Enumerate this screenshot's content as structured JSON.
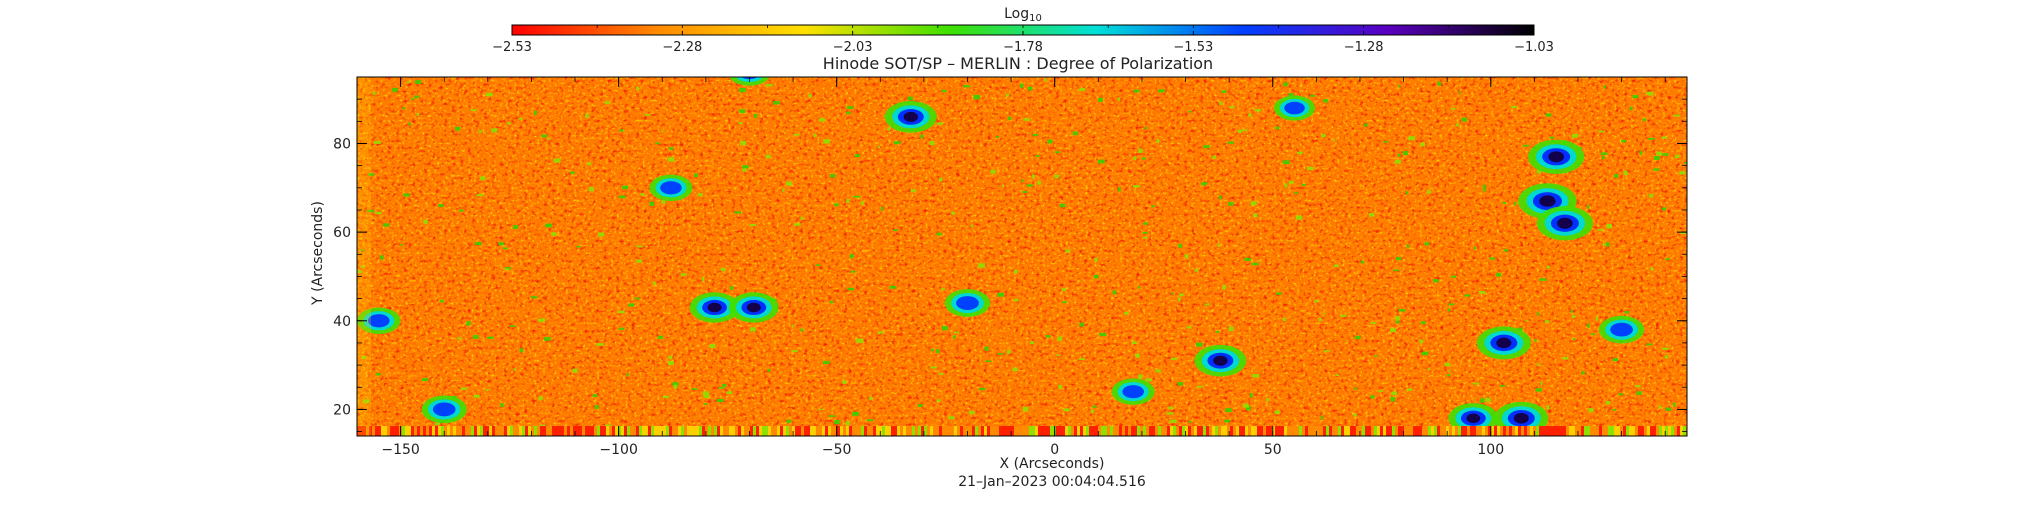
{
  "chart_data": {
    "type": "heatmap",
    "title": "Hinode SOT/SP – MERLIN : Degree of Polarization",
    "xlabel": "X (Arcseconds)",
    "ylabel": "Y (Arcseconds)",
    "timestamp": "21–Jan–2023 00:04:04.516",
    "xlim": [
      -160,
      145
    ],
    "ylim": [
      14,
      95
    ],
    "xticks": [
      -150,
      -100,
      -50,
      0,
      50,
      100
    ],
    "xtick_labels": [
      "−150",
      "−100",
      "−50",
      "0",
      "50",
      "100"
    ],
    "yticks": [
      20,
      40,
      60,
      80
    ],
    "ytick_labels": [
      "20",
      "40",
      "60",
      "80"
    ],
    "colorbar": {
      "label_base": "Log",
      "label_sub": "10",
      "range": [
        -2.53,
        -1.03
      ],
      "ticks": [
        -2.53,
        -2.28,
        -2.03,
        -1.78,
        -1.53,
        -1.28,
        -1.03
      ],
      "tick_labels": [
        "−2.53",
        "−2.28",
        "−2.03",
        "−1.78",
        "−1.53",
        "−1.28",
        "−1.03"
      ],
      "colors": [
        "#ff0000",
        "#ff8a00",
        "#ffe000",
        "#3ee000",
        "#00e0d8",
        "#0040ff",
        "#5a00c0",
        "#000000"
      ]
    },
    "data_summary": "Map mostly between −2.53 and −2.03 (red/orange/yellow), with scattered green network and compact blue/black patches near (-30,86), (-75,43), (40,30), (110,70), (100,35), (110,18).",
    "patches": [
      {
        "x": -33,
        "y": 86,
        "value": -1.3
      },
      {
        "x": -78,
        "y": 43,
        "value": -1.35
      },
      {
        "x": -69,
        "y": 43,
        "value": -1.35
      },
      {
        "x": 38,
        "y": 31,
        "value": -1.3
      },
      {
        "x": 115,
        "y": 77,
        "value": -1.2
      },
      {
        "x": 113,
        "y": 67,
        "value": -1.15
      },
      {
        "x": 117,
        "y": 62,
        "value": -1.2
      },
      {
        "x": 103,
        "y": 35,
        "value": -1.25
      },
      {
        "x": 107,
        "y": 18,
        "value": -1.25
      },
      {
        "x": 96,
        "y": 18,
        "value": -1.35
      },
      {
        "x": -70,
        "y": 96,
        "value": -1.5
      },
      {
        "x": -88,
        "y": 70,
        "value": -1.5
      },
      {
        "x": -140,
        "y": 20,
        "value": -1.45
      },
      {
        "x": -155,
        "y": 40,
        "value": -1.5
      },
      {
        "x": 130,
        "y": 38,
        "value": -1.45
      },
      {
        "x": 55,
        "y": 88,
        "value": -1.55
      },
      {
        "x": -20,
        "y": 44,
        "value": -1.45
      },
      {
        "x": 18,
        "y": 24,
        "value": -1.5
      }
    ]
  }
}
